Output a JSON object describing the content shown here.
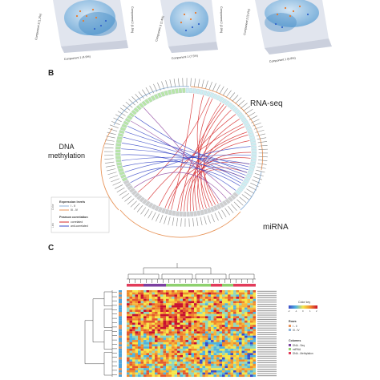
{
  "panel_a": {
    "plots": [
      {
        "x_axis": "Component 1 (4.9%)",
        "y_axis": "Component 2 (1.5%)"
      },
      {
        "x_axis": "Component 1 (7.5%)",
        "y_axis": "Component 2 (2.0%)"
      },
      {
        "x_axis": "Component 1 (9.8%)",
        "y_axis": "Component 2 (3.4%)"
      }
    ]
  },
  "panel_b": {
    "letter": "B",
    "label_rna": "RNA-seq",
    "label_dna_line1": "DNA",
    "label_dna_line2": "methylation",
    "label_mirna": "miRNA",
    "legend": {
      "group1_tag": "Color",
      "group1_title": "Expression levels",
      "group1_items": [
        {
          "label": "I - II",
          "color": "#8fb3d9"
        },
        {
          "label": "III - IV",
          "color": "#e8955a"
        }
      ],
      "group2_tag": "Link",
      "group2_title": "Pearson correlation",
      "group2_items": [
        {
          "label": "correlated",
          "color": "#d62728"
        },
        {
          "label": "anti-correlated",
          "color": "#3b4bc8"
        }
      ]
    }
  },
  "panel_c": {
    "letter": "C",
    "colorkey_title": "Color key",
    "colorkey_ticks": [
      "-2",
      "-1",
      "0",
      "1",
      "2"
    ],
    "rows_title": "Rows",
    "rows_items": [
      {
        "label": "I - II",
        "color": "#e8955a"
      },
      {
        "label": "III - IV",
        "color": "#8fb3d9"
      }
    ],
    "columns_title": "Columns",
    "columns_items": [
      {
        "label": "DNA - Seq",
        "color": "#7b3fa0"
      },
      {
        "label": "miRNA",
        "color": "#8fd16f"
      },
      {
        "label": "DNA - Methylation",
        "color": "#e23b5a"
      }
    ]
  }
}
